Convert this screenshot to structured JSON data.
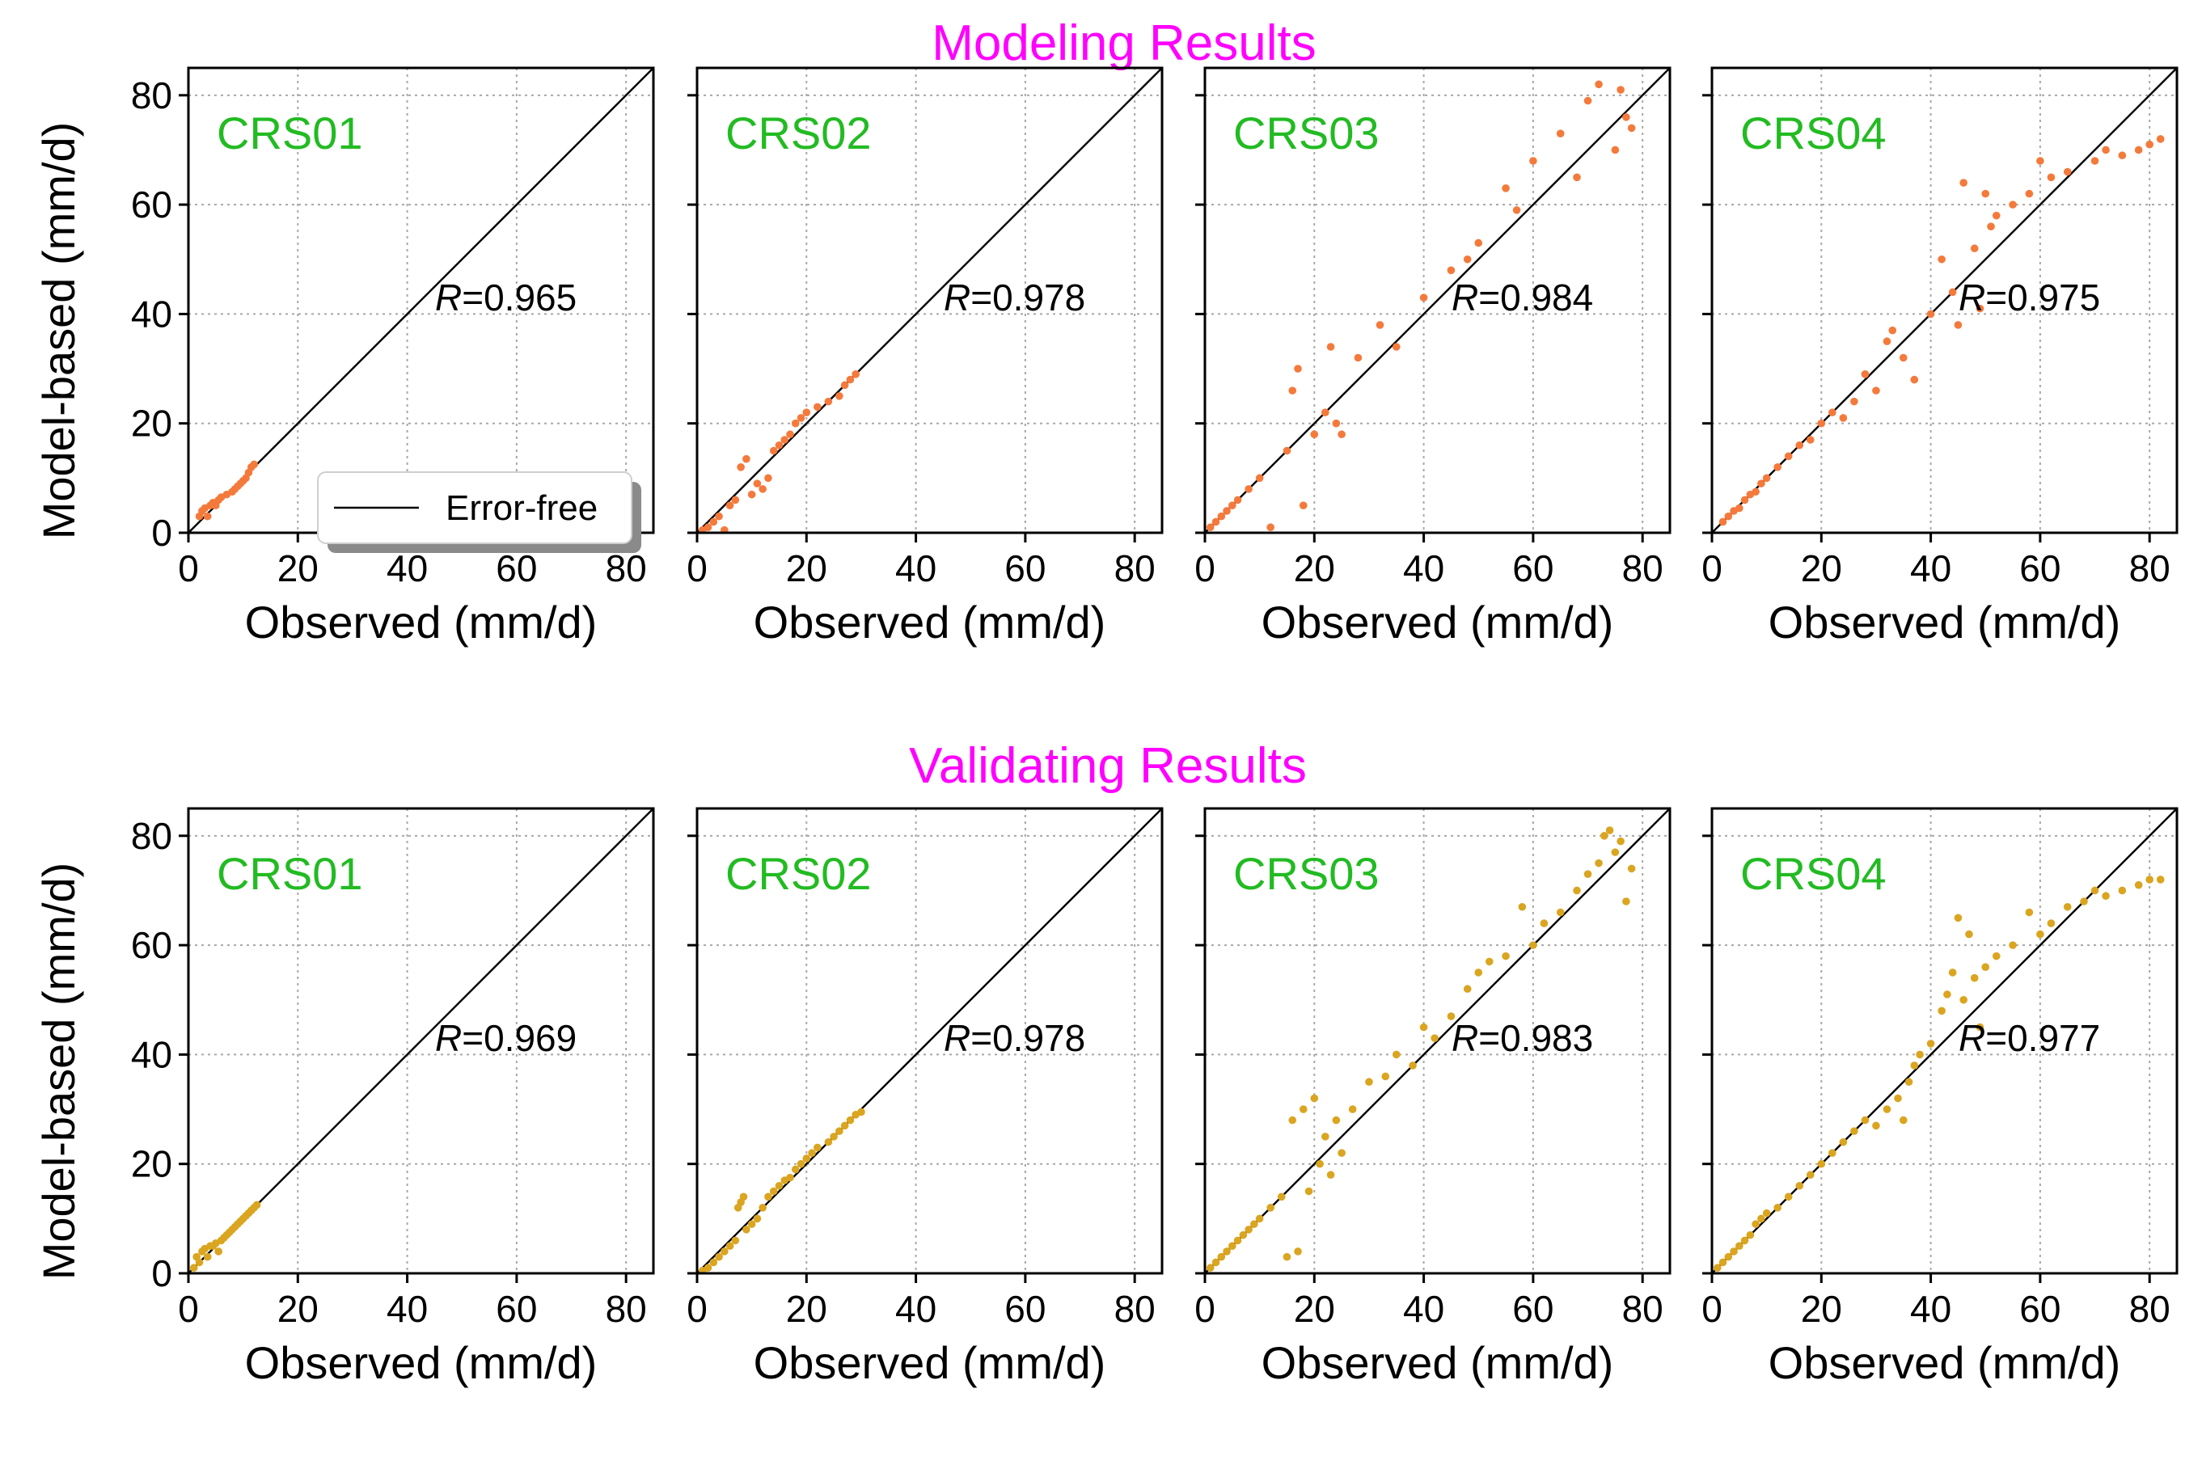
{
  "figure": {
    "rows": [
      {
        "title": "Modeling Results",
        "point_color": "#f47a3c"
      },
      {
        "title": "Validating Results",
        "point_color": "#daa520"
      }
    ],
    "xlabel": "Observed (mm/d)",
    "ylabel": "Model-based (mm/d)",
    "legend_label": "Error-free",
    "r_prefix": "R",
    "ticks": [
      "0",
      "20",
      "40",
      "60",
      "80"
    ]
  },
  "chart_data": [
    {
      "type": "scatter",
      "row": "Modeling Results",
      "station": "CRS01",
      "r_text": "=0.965",
      "xlim": [
        0,
        85
      ],
      "ylim": [
        0,
        85
      ],
      "show_legend": true,
      "x": [
        2,
        2.5,
        3,
        3.5,
        4,
        4.5,
        5,
        5.5,
        6,
        7,
        8,
        8.5,
        9,
        9.5,
        10,
        10.5,
        11,
        11.5,
        12
      ],
      "y": [
        3,
        4,
        4.5,
        3,
        5,
        5.5,
        5,
        6,
        6.5,
        7,
        7.5,
        8,
        8.5,
        9,
        9.5,
        10,
        11,
        12,
        12.5
      ]
    },
    {
      "type": "scatter",
      "row": "Modeling Results",
      "station": "CRS02",
      "r_text": "=0.978",
      "xlim": [
        0,
        85
      ],
      "ylim": [
        0,
        85
      ],
      "show_legend": false,
      "x": [
        1,
        2,
        3,
        4,
        5,
        6,
        7,
        8,
        9,
        10,
        11,
        12,
        13,
        14,
        15,
        16,
        17,
        18,
        19,
        20,
        22,
        24,
        26,
        27,
        28,
        29
      ],
      "y": [
        0.5,
        1,
        2,
        3,
        0.5,
        5,
        6,
        12,
        13.5,
        7,
        9,
        8,
        10,
        15,
        16,
        17,
        18,
        20,
        21,
        22,
        23,
        24,
        25,
        27,
        28,
        29
      ]
    },
    {
      "type": "scatter",
      "row": "Modeling Results",
      "station": "CRS03",
      "r_text": "=0.984",
      "xlim": [
        0,
        85
      ],
      "ylim": [
        0,
        85
      ],
      "show_legend": false,
      "x": [
        1,
        2,
        3,
        4,
        5,
        6,
        8,
        10,
        12,
        15,
        16,
        17,
        18,
        20,
        22,
        23,
        24,
        25,
        28,
        32,
        35,
        40,
        45,
        48,
        50,
        55,
        57,
        60,
        65,
        68,
        70,
        72,
        75,
        76,
        77,
        78
      ],
      "y": [
        1,
        2,
        3,
        4,
        5,
        6,
        8,
        10,
        1,
        15,
        26,
        30,
        5,
        18,
        22,
        34,
        20,
        18,
        32,
        38,
        34,
        43,
        48,
        50,
        53,
        63,
        59,
        68,
        73,
        65,
        79,
        82,
        70,
        81,
        76,
        74
      ]
    },
    {
      "type": "scatter",
      "row": "Modeling Results",
      "station": "CRS04",
      "r_text": "=0.975",
      "xlim": [
        0,
        85
      ],
      "ylim": [
        0,
        85
      ],
      "show_legend": false,
      "x": [
        2,
        3,
        4,
        5,
        6,
        7,
        8,
        9,
        10,
        12,
        14,
        16,
        18,
        20,
        22,
        24,
        26,
        28,
        30,
        32,
        33,
        35,
        37,
        40,
        42,
        44,
        45,
        46,
        48,
        49,
        50,
        51,
        52,
        55,
        58,
        60,
        62,
        65,
        70,
        72,
        75,
        78,
        80,
        82
      ],
      "y": [
        2,
        3,
        4,
        4.5,
        6,
        7,
        7.5,
        9,
        10,
        12,
        14,
        16,
        17,
        20,
        22,
        21,
        24,
        29,
        26,
        35,
        37,
        32,
        28,
        40,
        50,
        44,
        38,
        64,
        52,
        41,
        62,
        56,
        58,
        60,
        62,
        68,
        65,
        66,
        68,
        70,
        69,
        70,
        71,
        72
      ]
    },
    {
      "type": "scatter",
      "row": "Validating Results",
      "station": "CRS01",
      "r_text": "=0.969",
      "xlim": [
        0,
        85
      ],
      "ylim": [
        0,
        85
      ],
      "show_legend": false,
      "x": [
        1,
        1.5,
        2,
        2.5,
        3,
        3.5,
        4,
        4.5,
        5,
        5.5,
        6,
        6.5,
        7,
        7.5,
        8,
        8.5,
        9,
        9.5,
        10,
        10.5,
        11,
        11.5,
        12,
        12.5
      ],
      "y": [
        1,
        3,
        2,
        4,
        4.5,
        3,
        5,
        5,
        5.5,
        4,
        6,
        6.5,
        7,
        7.5,
        8,
        8.5,
        9,
        9.5,
        10,
        10.5,
        11,
        11.5,
        12,
        12.5
      ]
    },
    {
      "type": "scatter",
      "row": "Validating Results",
      "station": "CRS02",
      "r_text": "=0.978",
      "xlim": [
        0,
        85
      ],
      "ylim": [
        0,
        85
      ],
      "show_legend": false,
      "x": [
        1,
        2,
        3,
        4,
        5,
        6,
        7,
        7.5,
        8,
        8.5,
        9,
        10,
        11,
        12,
        13,
        14,
        15,
        16,
        17,
        18,
        19,
        20,
        21,
        22,
        24,
        25,
        26,
        27,
        28,
        29,
        30
      ],
      "y": [
        0.5,
        1,
        2,
        3,
        4,
        5,
        6,
        12,
        13,
        14,
        8,
        9,
        10,
        12,
        14,
        15,
        16,
        17,
        17.5,
        19,
        20,
        21,
        22,
        23,
        24,
        25,
        26,
        27,
        28,
        29,
        29.5
      ]
    },
    {
      "type": "scatter",
      "row": "Validating Results",
      "station": "CRS03",
      "r_text": "=0.983",
      "xlim": [
        0,
        85
      ],
      "ylim": [
        0,
        85
      ],
      "show_legend": false,
      "x": [
        1,
        2,
        3,
        4,
        5,
        6,
        7,
        8,
        9,
        10,
        12,
        14,
        15,
        16,
        17,
        18,
        19,
        20,
        21,
        22,
        23,
        24,
        25,
        27,
        30,
        33,
        35,
        38,
        40,
        42,
        45,
        48,
        50,
        52,
        55,
        58,
        60,
        62,
        65,
        68,
        70,
        72,
        73,
        74,
        75,
        76,
        77,
        78
      ],
      "y": [
        1,
        2,
        3,
        4,
        5,
        6,
        7,
        8,
        9,
        10,
        12,
        14,
        3,
        28,
        4,
        30,
        15,
        32,
        20,
        25,
        18,
        28,
        22,
        30,
        35,
        36,
        40,
        38,
        45,
        43,
        47,
        52,
        55,
        57,
        58,
        67,
        60,
        64,
        66,
        70,
        73,
        75,
        80,
        81,
        77,
        79,
        68,
        74
      ]
    },
    {
      "type": "scatter",
      "row": "Validating Results",
      "station": "CRS04",
      "r_text": "=0.977",
      "xlim": [
        0,
        85
      ],
      "ylim": [
        0,
        85
      ],
      "show_legend": false,
      "x": [
        1,
        2,
        3,
        4,
        5,
        6,
        7,
        8,
        9,
        10,
        12,
        14,
        16,
        18,
        20,
        22,
        24,
        26,
        28,
        30,
        32,
        34,
        35,
        36,
        37,
        38,
        40,
        42,
        43,
        44,
        45,
        46,
        47,
        48,
        49,
        50,
        52,
        55,
        58,
        60,
        62,
        65,
        68,
        70,
        72,
        75,
        78,
        80,
        82
      ],
      "y": [
        1,
        2,
        3,
        4,
        5,
        6,
        7,
        9,
        10,
        11,
        12,
        14,
        16,
        18,
        20,
        22,
        24,
        26,
        28,
        27,
        30,
        32,
        28,
        35,
        38,
        40,
        42,
        48,
        51,
        55,
        65,
        50,
        62,
        54,
        45,
        56,
        58,
        60,
        66,
        62,
        64,
        67,
        68,
        70,
        69,
        70,
        71,
        72,
        72
      ]
    }
  ]
}
